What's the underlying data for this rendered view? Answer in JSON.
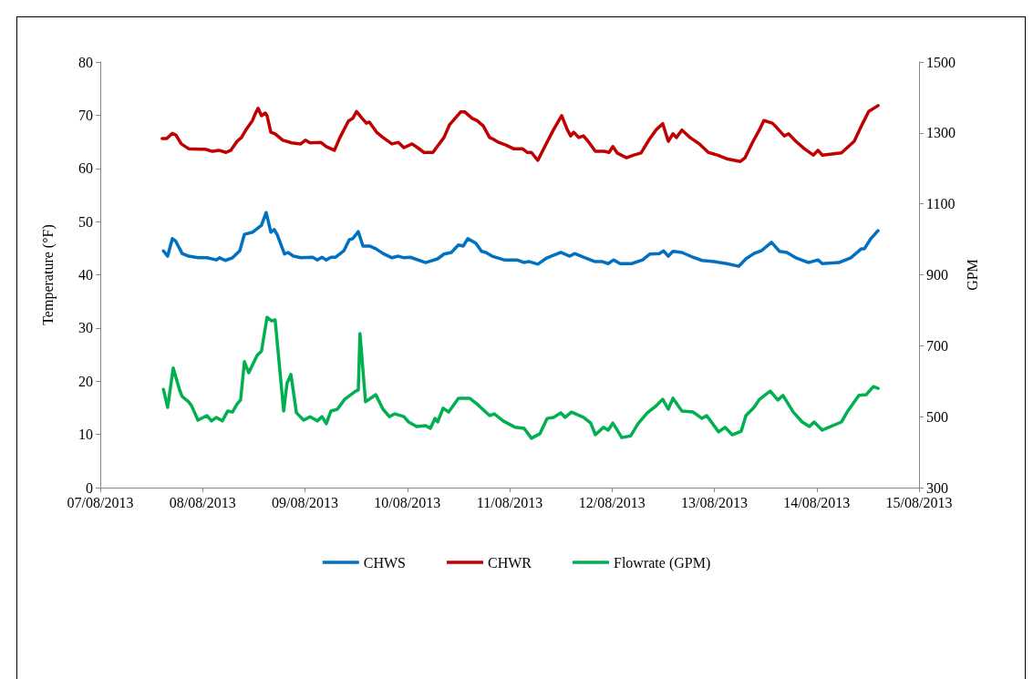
{
  "chart_data": {
    "type": "line",
    "ylabel": "Temperature (°F)",
    "y2label": "GPM",
    "xlim": [
      "2013-08-07",
      "2013-08-15"
    ],
    "xticks": [
      {
        "value": "2013-08-07",
        "label": "07/08/2013"
      },
      {
        "value": "2013-08-08",
        "label": "08/08/2013"
      },
      {
        "value": "2013-08-09",
        "label": "09/08/2013"
      },
      {
        "value": "2013-08-10",
        "label": "10/08/2013"
      },
      {
        "value": "2013-08-11",
        "label": "11/08/2013"
      },
      {
        "value": "2013-08-12",
        "label": "12/08/2013"
      },
      {
        "value": "2013-08-13",
        "label": "13/08/2013"
      },
      {
        "value": "2013-08-14",
        "label": "14/08/2013"
      },
      {
        "value": "2013-08-15",
        "label": "15/08/2013"
      }
    ],
    "ylim": [
      0,
      80
    ],
    "yticks": [
      0,
      10,
      20,
      30,
      40,
      50,
      60,
      70,
      80
    ],
    "y2lim": [
      300,
      1500
    ],
    "y2ticks": [
      300,
      500,
      700,
      900,
      1100,
      1300,
      1500
    ],
    "grid": false,
    "legend": "bottom",
    "marker": "none",
    "line_style": "solid",
    "series": [
      {
        "name": "CHWS",
        "color": "#0070c0",
        "x": [
          "2013-08-07T14:48",
          "2013-08-07T15:48",
          "2013-08-07T16:54",
          "2013-08-07T17:42",
          "2013-08-07T19:12",
          "2013-08-07T20:42",
          "2013-08-07T22:54",
          "2013-08-08T01:00",
          "2013-08-08T03:12",
          "2013-08-08T04:00",
          "2013-08-08T05:18",
          "2013-08-08T07:00",
          "2013-08-08T08:42",
          "2013-08-08T09:48",
          "2013-08-08T11:42",
          "2013-08-08T13:48",
          "2013-08-08T14:54",
          "2013-08-08T16:00",
          "2013-08-08T16:48",
          "2013-08-08T17:30",
          "2013-08-08T19:12",
          "2013-08-08T20:00",
          "2013-08-08T21:18",
          "2013-08-08T23:00",
          "2013-08-09T01:48",
          "2013-08-09T02:54",
          "2013-08-09T04:00",
          "2013-08-09T05:00",
          "2013-08-09T06:06",
          "2013-08-09T07:12",
          "2013-08-09T09:06",
          "2013-08-09T10:24",
          "2013-08-09T11:12",
          "2013-08-09T12:30",
          "2013-08-09T13:36",
          "2013-08-09T15:06",
          "2013-08-09T16:36",
          "2013-08-09T18:18",
          "2013-08-09T20:24",
          "2013-08-09T21:54",
          "2013-08-09T23:12",
          "2013-08-10T00:42",
          "2013-08-10T04:18",
          "2013-08-10T07:06",
          "2013-08-10T08:36",
          "2013-08-10T10:18",
          "2013-08-10T12:00",
          "2013-08-10T13:06",
          "2013-08-10T14:12",
          "2013-08-10T16:06",
          "2013-08-10T17:24",
          "2013-08-10T18:24",
          "2013-08-10T19:54",
          "2013-08-10T22:42",
          "2013-08-11T01:42",
          "2013-08-11T03:24",
          "2013-08-11T04:30",
          "2013-08-11T06:36",
          "2013-08-11T08:48",
          "2013-08-11T12:00",
          "2013-08-11T14:06",
          "2013-08-11T15:12",
          "2013-08-11T17:18",
          "2013-08-11T19:54",
          "2013-08-11T21:36",
          "2013-08-11T23:06",
          "2013-08-12T00:24",
          "2013-08-12T01:54",
          "2013-08-12T04:36",
          "2013-08-12T07:12",
          "2013-08-12T08:54",
          "2013-08-12T11:06",
          "2013-08-12T12:06",
          "2013-08-12T13:12",
          "2013-08-12T14:18",
          "2013-08-12T16:24",
          "2013-08-12T19:00",
          "2013-08-12T21:06",
          "2013-08-12T23:54",
          "2013-08-13T02:54",
          "2013-08-13T05:42",
          "2013-08-13T07:24",
          "2013-08-13T09:18",
          "2013-08-13T11:00",
          "2013-08-13T13:24",
          "2013-08-13T15:18",
          "2013-08-13T17:00",
          "2013-08-13T19:06",
          "2013-08-13T22:06",
          "2013-08-14T00:18",
          "2013-08-14T01:18",
          "2013-08-14T05:12",
          "2013-08-14T08:00",
          "2013-08-14T10:30",
          "2013-08-14T11:12",
          "2013-08-14T12:42",
          "2013-08-14T14:24"
        ],
        "values": [
          44.5,
          43.5,
          46.8,
          46.3,
          44.0,
          43.5,
          43.2,
          43.2,
          42.8,
          43.2,
          42.7,
          43.2,
          44.5,
          47.6,
          48.0,
          49.3,
          51.7,
          48.0,
          48.5,
          47.5,
          43.9,
          44.2,
          43.5,
          43.2,
          43.3,
          42.8,
          43.3,
          42.8,
          43.3,
          43.3,
          44.5,
          46.6,
          46.8,
          48.1,
          45.4,
          45.4,
          44.9,
          44.0,
          43.2,
          43.5,
          43.2,
          43.3,
          42.3,
          43.0,
          43.9,
          44.2,
          45.6,
          45.4,
          46.8,
          45.9,
          44.4,
          44.2,
          43.5,
          42.8,
          42.8,
          42.3,
          42.5,
          42.0,
          43.2,
          44.2,
          43.5,
          44.0,
          43.3,
          42.5,
          42.5,
          42.1,
          42.8,
          42.1,
          42.1,
          42.8,
          43.9,
          44.0,
          44.5,
          43.5,
          44.4,
          44.2,
          43.3,
          42.7,
          42.5,
          42.1,
          41.6,
          43.0,
          44.0,
          44.5,
          46.1,
          44.4,
          44.2,
          43.2,
          42.3,
          42.8,
          42.1,
          42.3,
          43.2,
          44.9,
          44.9,
          46.8,
          48.3
        ]
      },
      {
        "name": "CHWR",
        "color": "#c00000",
        "x": [
          "2013-08-07T14:30",
          "2013-08-07T15:36",
          "2013-08-07T16:54",
          "2013-08-07T17:42",
          "2013-08-07T19:00",
          "2013-08-07T20:42",
          "2013-08-07T23:30",
          "2013-08-08T00:36",
          "2013-08-08T02:18",
          "2013-08-08T03:48",
          "2013-08-08T05:30",
          "2013-08-08T06:36",
          "2013-08-08T08:06",
          "2013-08-08T09:06",
          "2013-08-08T10:12",
          "2013-08-08T11:42",
          "2013-08-08T12:18",
          "2013-08-08T13:00",
          "2013-08-08T13:48",
          "2013-08-08T14:42",
          "2013-08-08T15:06",
          "2013-08-08T16:00",
          "2013-08-08T17:00",
          "2013-08-08T18:48",
          "2013-08-08T20:54",
          "2013-08-08T23:00",
          "2013-08-09T00:06",
          "2013-08-09T01:12",
          "2013-08-09T03:42",
          "2013-08-09T05:00",
          "2013-08-09T06:54",
          "2013-08-09T08:12",
          "2013-08-09T10:12",
          "2013-08-09T11:12",
          "2013-08-09T12:06",
          "2013-08-09T13:24",
          "2013-08-09T14:24",
          "2013-08-09T15:06",
          "2013-08-09T16:48",
          "2013-08-09T18:18",
          "2013-08-09T20:24",
          "2013-08-09T21:54",
          "2013-08-09T23:12",
          "2013-08-10T01:06",
          "2013-08-10T02:24",
          "2013-08-10T03:54",
          "2013-08-10T06:00",
          "2013-08-10T07:06",
          "2013-08-10T08:36",
          "2013-08-10T09:54",
          "2013-08-10T12:30",
          "2013-08-10T13:30",
          "2013-08-10T15:12",
          "2013-08-10T16:18",
          "2013-08-10T17:48",
          "2013-08-10T19:18",
          "2013-08-10T19:54",
          "2013-08-10T21:24",
          "2013-08-10T23:06",
          "2013-08-11T00:54",
          "2013-08-11T03:00",
          "2013-08-11T04:06",
          "2013-08-11T05:06",
          "2013-08-11T06:36",
          "2013-08-11T08:18",
          "2013-08-11T10:18",
          "2013-08-11T12:12",
          "2013-08-11T13:30",
          "2013-08-11T14:18",
          "2013-08-11T15:00",
          "2013-08-11T16:12",
          "2013-08-11T17:18",
          "2013-08-11T18:24",
          "2013-08-11T20:06",
          "2013-08-11T22:12",
          "2013-08-11T23:18",
          "2013-08-12T00:12",
          "2013-08-12T01:12",
          "2013-08-12T03:24",
          "2013-08-12T05:06",
          "2013-08-12T06:48",
          "2013-08-12T08:42",
          "2013-08-12T10:24",
          "2013-08-12T11:54",
          "2013-08-12T13:12",
          "2013-08-12T14:18",
          "2013-08-12T15:06",
          "2013-08-12T16:24",
          "2013-08-12T18:18",
          "2013-08-12T20:30",
          "2013-08-12T22:36",
          "2013-08-13T00:42",
          "2013-08-13T02:54",
          "2013-08-13T06:06",
          "2013-08-13T07:12",
          "2013-08-13T08:54",
          "2013-08-13T10:36",
          "2013-08-13T11:36",
          "2013-08-13T13:36",
          "2013-08-13T14:36",
          "2013-08-13T16:24",
          "2013-08-13T17:24",
          "2013-08-13T19:06",
          "2013-08-13T21:06",
          "2013-08-13T23:12",
          "2013-08-14T00:18",
          "2013-08-14T01:18",
          "2013-08-14T05:48",
          "2013-08-14T08:48",
          "2013-08-14T10:30",
          "2013-08-14T12:12",
          "2013-08-14T14:24"
        ],
        "values": [
          65.6,
          65.6,
          66.6,
          66.3,
          64.6,
          63.7,
          63.6,
          63.6,
          63.2,
          63.4,
          63.0,
          63.4,
          65.1,
          65.8,
          67.3,
          69.0,
          70.2,
          71.3,
          69.9,
          70.4,
          69.9,
          66.8,
          66.5,
          65.3,
          64.8,
          64.6,
          65.3,
          64.8,
          64.9,
          64.1,
          63.4,
          65.8,
          68.9,
          69.4,
          70.7,
          69.4,
          68.5,
          68.7,
          66.8,
          65.8,
          64.6,
          64.9,
          63.9,
          64.6,
          63.9,
          63.0,
          63.0,
          64.2,
          65.8,
          68.2,
          70.6,
          70.6,
          69.4,
          69.0,
          68.0,
          65.8,
          65.6,
          64.9,
          64.4,
          63.7,
          63.7,
          63.0,
          63.0,
          61.5,
          64.2,
          67.3,
          69.9,
          67.3,
          66.1,
          66.8,
          65.8,
          66.1,
          65.1,
          63.2,
          63.2,
          63.0,
          64.1,
          62.9,
          62.0,
          62.5,
          62.9,
          65.4,
          67.3,
          68.4,
          65.1,
          66.5,
          65.8,
          67.2,
          65.8,
          64.6,
          63.0,
          62.5,
          61.8,
          61.3,
          62.0,
          64.8,
          67.3,
          69.0,
          68.5,
          67.7,
          66.1,
          66.5,
          65.1,
          63.7,
          62.5,
          63.4,
          62.5,
          62.9,
          65.1,
          68.0,
          70.7,
          71.8
        ]
      },
      {
        "name": "Flowrate (GPM)",
        "color": "#00b050",
        "axis": "y2",
        "x": [
          "2013-08-07T14:48",
          "2013-08-07T15:48",
          "2013-08-07T17:06",
          "2013-08-07T18:36",
          "2013-08-07T19:12",
          "2013-08-07T20:42",
          "2013-08-07T21:24",
          "2013-08-07T22:54",
          "2013-08-08T01:00",
          "2013-08-08T02:06",
          "2013-08-08T03:12",
          "2013-08-08T04:36",
          "2013-08-08T05:54",
          "2013-08-08T07:00",
          "2013-08-08T08:06",
          "2013-08-08T08:54",
          "2013-08-08T09:48",
          "2013-08-08T10:48",
          "2013-08-08T12:48",
          "2013-08-08T13:48",
          "2013-08-08T15:06",
          "2013-08-08T16:12",
          "2013-08-08T17:00",
          "2013-08-08T19:00",
          "2013-08-08T19:48",
          "2013-08-08T20:42",
          "2013-08-08T22:00",
          "2013-08-08T23:42",
          "2013-08-09T01:12",
          "2013-08-09T02:54",
          "2013-08-09T04:00",
          "2013-08-09T05:00",
          "2013-08-09T06:06",
          "2013-08-09T07:36",
          "2013-08-09T09:18",
          "2013-08-09T11:54",
          "2013-08-09T12:30",
          "2013-08-09T12:54",
          "2013-08-09T14:12",
          "2013-08-09T16:36",
          "2013-08-09T18:18",
          "2013-08-09T19:48",
          "2013-08-09T21:06",
          "2013-08-09T23:12",
          "2013-08-10T00:18",
          "2013-08-10T02:12",
          "2013-08-10T04:18",
          "2013-08-10T05:24",
          "2013-08-10T06:30",
          "2013-08-10T07:06",
          "2013-08-10T08:24",
          "2013-08-10T09:42",
          "2013-08-10T12:00",
          "2013-08-10T14:36",
          "2013-08-10T16:18",
          "2013-08-10T19:18",
          "2013-08-10T20:24",
          "2013-08-10T22:30",
          "2013-08-11T01:18",
          "2013-08-11T03:24",
          "2013-08-11T05:06",
          "2013-08-11T07:06",
          "2013-08-11T08:48",
          "2013-08-11T10:18",
          "2013-08-11T12:00",
          "2013-08-11T13:00",
          "2013-08-11T14:30",
          "2013-08-11T17:18",
          "2013-08-11T19:00",
          "2013-08-11T20:06",
          "2013-08-11T22:00",
          "2013-08-11T23:06",
          "2013-08-12T00:12",
          "2013-08-12T02:18",
          "2013-08-12T04:24",
          "2013-08-12T06:06",
          "2013-08-12T08:18",
          "2013-08-12T10:24",
          "2013-08-12T11:54",
          "2013-08-12T13:12",
          "2013-08-12T14:18",
          "2013-08-12T16:24",
          "2013-08-12T19:00",
          "2013-08-12T21:06",
          "2013-08-12T22:12",
          "2013-08-13T01:00",
          "2013-08-13T02:30",
          "2013-08-13T04:12",
          "2013-08-13T06:18",
          "2013-08-13T07:24",
          "2013-08-13T09:18",
          "2013-08-13T10:36",
          "2013-08-13T13:06",
          "2013-08-13T14:54",
          "2013-08-13T16:06",
          "2013-08-13T18:30",
          "2013-08-13T20:36",
          "2013-08-13T22:18",
          "2013-08-13T23:24",
          "2013-08-14T01:18",
          "2013-08-14T05:48",
          "2013-08-14T07:18",
          "2013-08-14T09:54",
          "2013-08-14T11:36",
          "2013-08-14T13:18",
          "2013-08-14T14:24"
        ],
        "values": [
          577,
          526,
          637,
          575,
          557,
          542,
          531,
          490,
          503,
          488,
          498,
          488,
          516,
          513,
          536,
          547,
          655,
          624,
          673,
          685,
          780,
          770,
          773,
          516,
          595,
          619,
          511,
          490,
          500,
          488,
          500,
          480,
          516,
          521,
          549,
          572,
          575,
          734,
          542,
          562,
          521,
          500,
          508,
          500,
          485,
          472,
          475,
          467,
          495,
          485,
          524,
          513,
          552,
          552,
          536,
          503,
          508,
          488,
          470,
          467,
          439,
          452,
          495,
          498,
          511,
          498,
          513,
          498,
          482,
          449,
          470,
          462,
          482,
          441,
          446,
          480,
          511,
          531,
          549,
          521,
          552,
          516,
          513,
          495,
          503,
          457,
          470,
          449,
          459,
          503,
          526,
          549,
          572,
          547,
          560,
          513,
          485,
          472,
          485,
          462,
          485,
          516,
          560,
          562,
          585,
          580
        ]
      }
    ]
  }
}
